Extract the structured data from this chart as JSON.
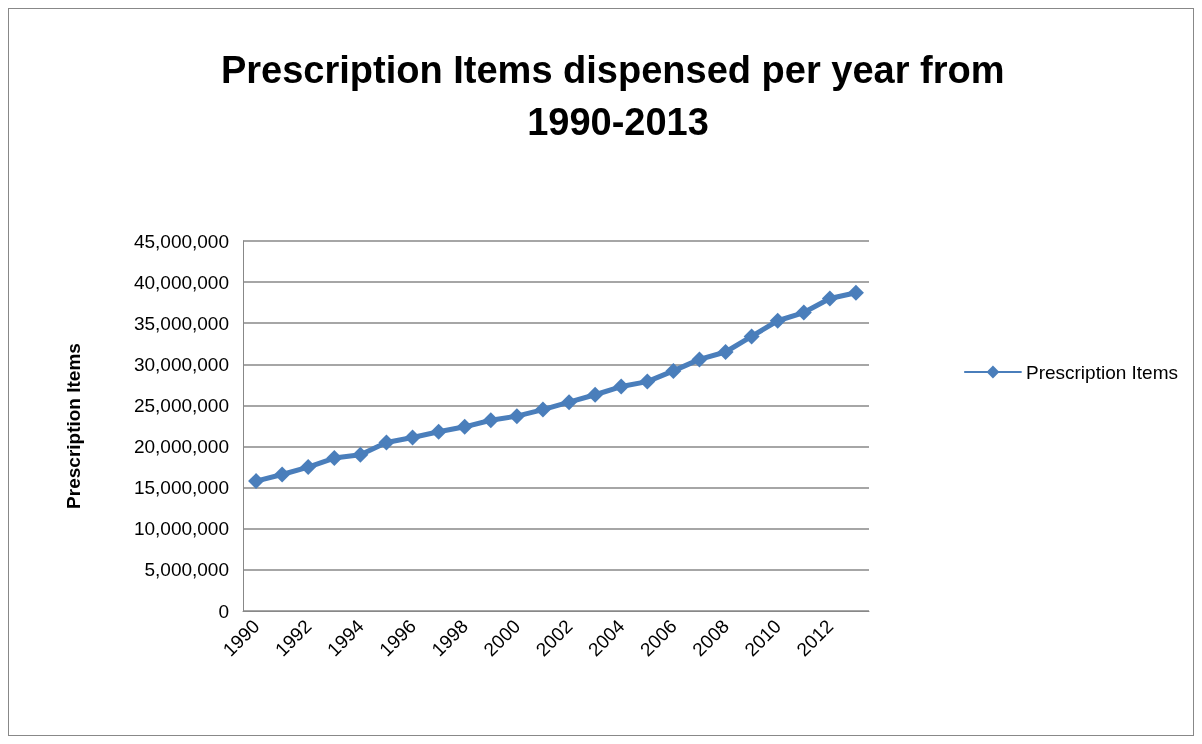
{
  "chart_data": {
    "type": "line",
    "title": "Prescription Items dispensed per year from 1990-2013",
    "ylabel": "Prescription Items",
    "categories": [
      "1990",
      null,
      "1992",
      null,
      "1994",
      null,
      "1996",
      null,
      "1998",
      null,
      "2000",
      null,
      "2002",
      null,
      "2004",
      null,
      "2006",
      null,
      "2008",
      null,
      "2010",
      null,
      "2012",
      null
    ],
    "series": [
      {
        "name": "Prescription Items",
        "color": "#4a7ebb",
        "values": [
          15800000,
          16600000,
          17500000,
          18600000,
          19000000,
          20500000,
          21100000,
          21800000,
          22400000,
          23200000,
          23700000,
          24500000,
          25400000,
          26300000,
          27300000,
          27900000,
          29200000,
          30600000,
          31500000,
          33400000,
          35300000,
          36300000,
          38000000,
          38700000
        ]
      }
    ],
    "ylim": [
      0,
      45000000
    ],
    "yticks": [
      0,
      {
        "value": 5000000,
        "label": "5,000,000"
      },
      {
        "value": 10000000,
        "label": "10,000,000"
      },
      {
        "value": 15000000,
        "label": "15,000,000"
      },
      {
        "value": 20000000,
        "label": "20,000,000"
      },
      {
        "value": 25000000,
        "label": "25,000,000"
      },
      {
        "value": 30000000,
        "label": "30,000,000"
      },
      {
        "value": 35000000,
        "label": "35,000,000"
      },
      {
        "value": 40000000,
        "label": "40,000,000"
      },
      {
        "value": 45000000,
        "label": "45,000,000"
      }
    ],
    "grid": "y",
    "legend": "right",
    "marker": "diamond",
    "line_style": "solid"
  }
}
